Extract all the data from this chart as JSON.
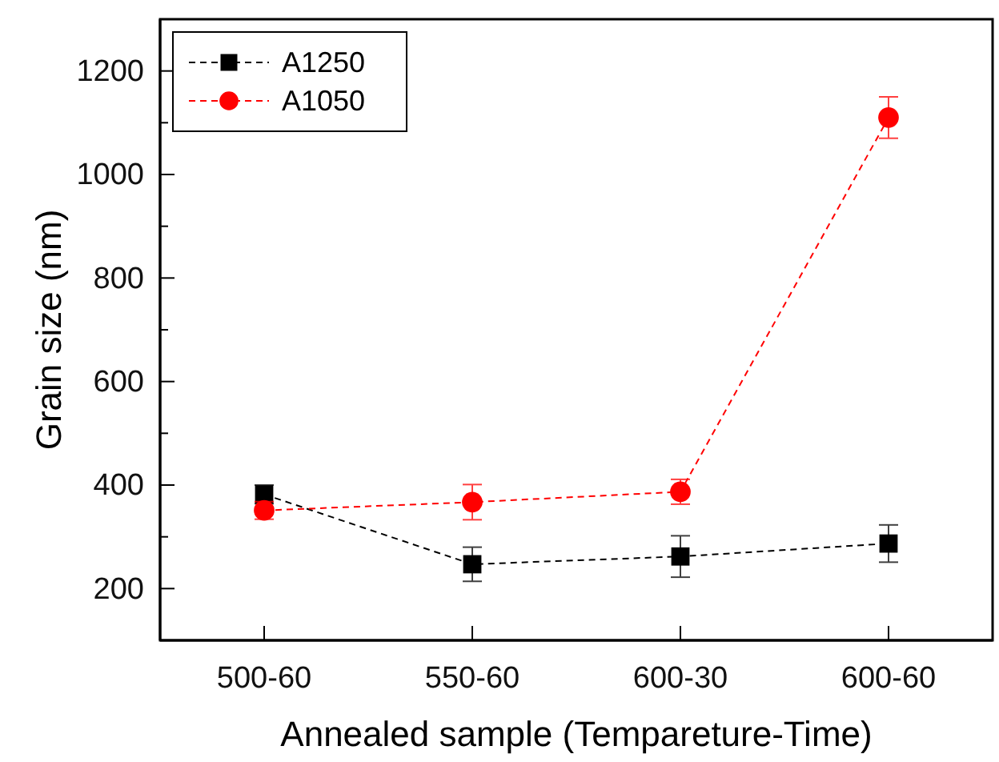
{
  "chart_data": {
    "type": "line",
    "xlabel": "Annealed sample (Tempareture-Time)",
    "ylabel": "Grain size (nm)",
    "categories": [
      "500-60",
      "550-60",
      "600-30",
      "600-60"
    ],
    "series": [
      {
        "name": "A1250",
        "color": "#000000",
        "marker": "square",
        "values": [
          382,
          247,
          262,
          287
        ],
        "errors": [
          18,
          33,
          40,
          36
        ]
      },
      {
        "name": "A1050",
        "color": "#ff0000",
        "marker": "circle",
        "values": [
          351,
          367,
          387,
          1110
        ],
        "errors": [
          17,
          34,
          24,
          40
        ]
      }
    ],
    "ylim": [
      100,
      1300
    ],
    "yticks": [
      {
        "value": 100,
        "label": null
      },
      200,
      {
        "value": 300,
        "label": null
      },
      400,
      {
        "value": 500,
        "label": null
      },
      600,
      {
        "value": 700,
        "label": null
      },
      800,
      {
        "value": 900,
        "label": null
      },
      1000,
      {
        "value": 1100,
        "label": null
      },
      1200,
      {
        "value": 1300,
        "label": null
      }
    ],
    "grid": false,
    "legend": "top left",
    "line_style": "dashed"
  }
}
